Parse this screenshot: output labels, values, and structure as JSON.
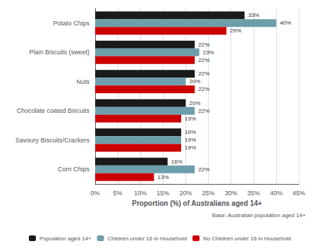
{
  "chart_data": {
    "type": "bar",
    "orientation": "horizontal",
    "categories": [
      "Corn Chips",
      "Savoury Biscuits/Crackers",
      "Chocolate coated Biscuits",
      "Nuts",
      "Plain Biscuits (sweet)",
      "Potato Chips"
    ],
    "series": [
      {
        "name": "Population aged 14+",
        "color": "#1a1a1a",
        "values": [
          16,
          19,
          20,
          22,
          22,
          33
        ],
        "value_labels": [
          "16%",
          "19%",
          "20%",
          "22%",
          "22%",
          "33%"
        ]
      },
      {
        "name": "Children under 16 in Household",
        "color": "#6d9eab",
        "values": [
          22,
          19,
          22,
          20,
          23,
          40
        ],
        "value_labels": [
          "22%",
          "19%",
          "22%",
          "20%",
          "23%",
          "40%"
        ]
      },
      {
        "name": "No Children under 16 in Household",
        "color": "#cc0000",
        "values": [
          13,
          19,
          19,
          22,
          22,
          29
        ],
        "value_labels": [
          "13%",
          "19%",
          "19%",
          "22%",
          "22%",
          "29%"
        ]
      }
    ],
    "xlabel": "Proportion (%) of Australians aged 14+",
    "xlim": [
      0,
      45
    ],
    "xticks": [
      {
        "value": 0,
        "label": "0%"
      },
      {
        "value": 5,
        "label": "5%"
      },
      {
        "value": 10,
        "label": "10%"
      },
      {
        "value": 15,
        "label": "15%"
      },
      {
        "value": 20,
        "label": "20%"
      },
      {
        "value": 25,
        "label": "25%"
      },
      {
        "value": 30,
        "label": "30%"
      },
      {
        "value": 35,
        "label": "35%"
      },
      {
        "value": 40,
        "label": "40%"
      },
      {
        "value": 45,
        "label": "45%"
      }
    ],
    "annotations": [
      "Base: Australian population aged 14+"
    ],
    "grid": true,
    "legend": "bottom",
    "data_labels": true
  }
}
